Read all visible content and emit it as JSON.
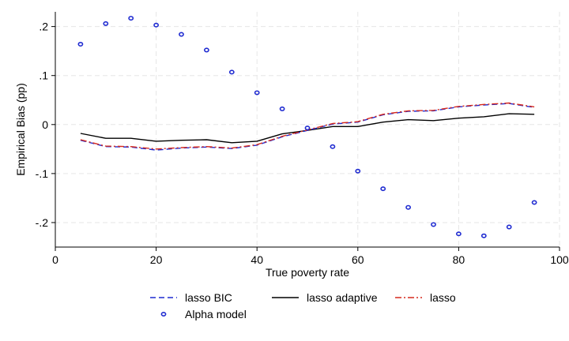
{
  "chart_data": {
    "type": "line",
    "xlabel": "True poverty rate",
    "ylabel": "Empirical Bias (pp)",
    "xlim": [
      0,
      100
    ],
    "ylim": [
      -0.25,
      0.23
    ],
    "x_ticks": [
      0,
      20,
      40,
      60,
      80,
      100
    ],
    "x_tick_labels": [
      "0",
      "20",
      "40",
      "60",
      "80",
      "100"
    ],
    "y_ticks": [
      -0.2,
      -0.1,
      0,
      0.1,
      0.2
    ],
    "y_tick_labels": [
      "-.2",
      "-.1",
      "0",
      ".1",
      ".2"
    ],
    "grid": true,
    "legend_position": "bottom",
    "x": [
      5,
      10,
      15,
      20,
      25,
      30,
      35,
      40,
      45,
      50,
      55,
      60,
      65,
      70,
      75,
      80,
      85,
      90,
      95
    ],
    "series": [
      {
        "name": "lasso BIC",
        "style": "dashed",
        "color": "#1f2bd1",
        "values": [
          -0.032,
          -0.045,
          -0.046,
          -0.052,
          -0.048,
          -0.046,
          -0.049,
          -0.042,
          -0.025,
          -0.012,
          0.001,
          0.005,
          0.02,
          0.027,
          0.028,
          0.036,
          0.04,
          0.043,
          0.035
        ]
      },
      {
        "name": "lasso adaptive",
        "style": "solid",
        "color": "#000000",
        "values": [
          -0.018,
          -0.028,
          -0.028,
          -0.034,
          -0.032,
          -0.031,
          -0.037,
          -0.034,
          -0.019,
          -0.012,
          -0.004,
          -0.004,
          0.005,
          0.01,
          0.008,
          0.013,
          0.016,
          0.022,
          0.021
        ]
      },
      {
        "name": "lasso",
        "style": "dashdot",
        "color": "#d62a1e",
        "values": [
          -0.031,
          -0.044,
          -0.045,
          -0.05,
          -0.047,
          -0.045,
          -0.048,
          -0.041,
          -0.024,
          -0.011,
          0.002,
          0.006,
          0.021,
          0.028,
          0.029,
          0.037,
          0.041,
          0.044,
          0.036
        ]
      },
      {
        "name": "Alpha model",
        "style": "markers",
        "color": "#1f2bd1",
        "values": [
          0.164,
          0.206,
          0.217,
          0.203,
          0.184,
          0.152,
          0.107,
          0.065,
          0.032,
          -0.007,
          -0.045,
          -0.095,
          -0.131,
          -0.169,
          -0.204,
          -0.223,
          -0.227,
          -0.209,
          -0.159
        ]
      }
    ]
  }
}
